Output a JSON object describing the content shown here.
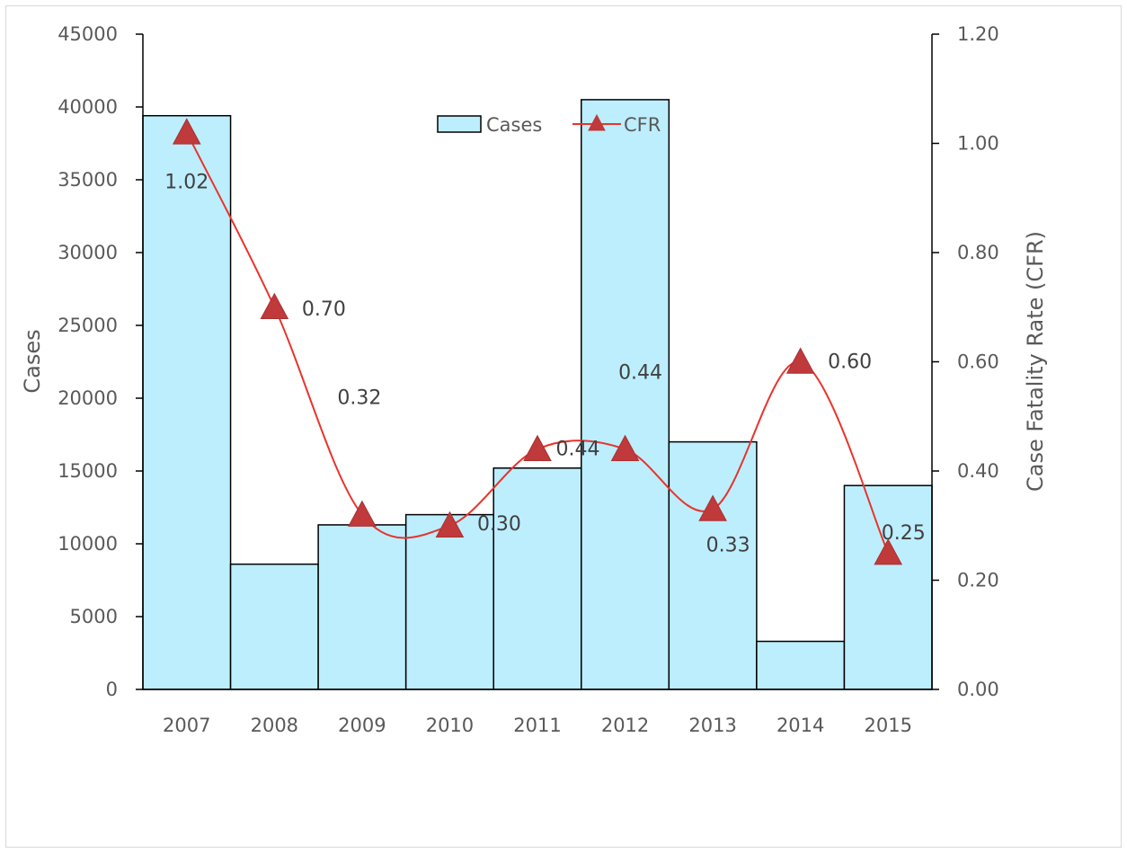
{
  "chart_data": {
    "type": "bar+line",
    "categories": [
      "2007",
      "2008",
      "2009",
      "2010",
      "2011",
      "2012",
      "2013",
      "2014",
      "2015"
    ],
    "series": [
      {
        "name": "Cases",
        "type": "bar",
        "axis": "left",
        "values": [
          39400,
          8600,
          11300,
          12000,
          15200,
          40500,
          17000,
          3300,
          14000
        ],
        "color": "#bdeefd"
      },
      {
        "name": "CFR",
        "type": "line",
        "axis": "right",
        "marker": "triangle",
        "values": [
          1.02,
          0.7,
          0.32,
          0.3,
          0.44,
          0.44,
          0.33,
          0.6,
          0.25
        ],
        "labels": [
          "1.02",
          "0.70",
          "0.32",
          "0.30",
          "0.44",
          "0.44",
          "0.33",
          "0.60",
          "0.25"
        ],
        "color": "#e8342d",
        "marker_color": "#c0393b"
      }
    ],
    "title": "",
    "xlabel": "",
    "ylabel": "Cases",
    "y2label": "Case Fatality Rate (CFR)",
    "ylim": [
      0,
      45000
    ],
    "y2lim": [
      0,
      1.2
    ],
    "yticks": [
      "0",
      "5000",
      "10000",
      "15000",
      "20000",
      "25000",
      "30000",
      "35000",
      "40000",
      "45000"
    ],
    "y2ticks": [
      "0.00",
      "0.20",
      "0.40",
      "0.60",
      "0.80",
      "1.00",
      "1.20"
    ],
    "grid": false,
    "legend": "top-center"
  }
}
